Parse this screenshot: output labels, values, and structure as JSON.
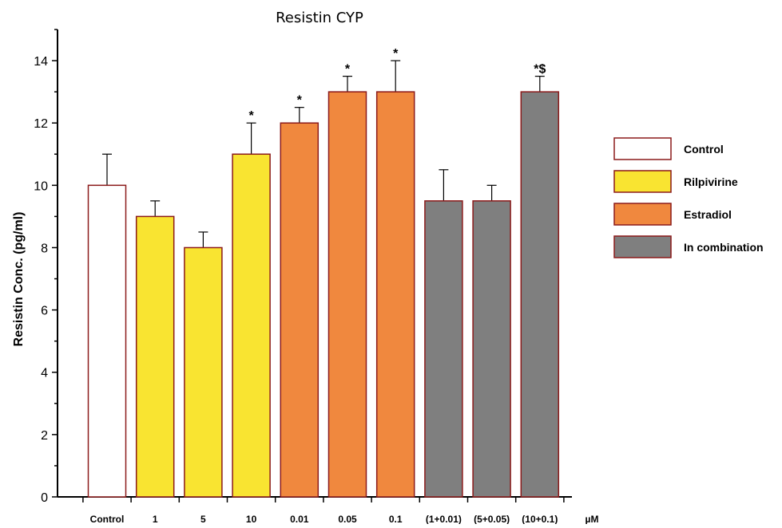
{
  "chart_data": {
    "type": "bar",
    "title": "Resistin CYP",
    "xlabel": "",
    "ylabel": "Resistin Conc.  (pg/ml)",
    "unit_label": "µM",
    "ylim": [
      0,
      15
    ],
    "yticks": [
      0,
      2,
      4,
      6,
      8,
      10,
      12,
      14
    ],
    "grid": false,
    "legend_position": "right",
    "categories": [
      "Control",
      "1",
      "5",
      "10",
      "0.01",
      "0.05",
      "0.1",
      "(1+0.01)",
      "(5+0.05)",
      "(10+0.1)"
    ],
    "values": [
      10,
      9,
      8,
      11,
      12,
      13,
      13,
      9.5,
      9.5,
      13
    ],
    "errors": [
      1,
      0.5,
      0.5,
      1,
      0.5,
      0.5,
      1,
      1,
      0.5,
      0.5
    ],
    "annotations": [
      "",
      "",
      "",
      "*",
      "*",
      "*",
      "*",
      "",
      "",
      "*$"
    ],
    "groups": [
      0,
      1,
      1,
      1,
      2,
      2,
      2,
      3,
      3,
      3
    ],
    "series": [
      {
        "name": "Control",
        "color": "#ffffff"
      },
      {
        "name": "Rilpivirine",
        "color": "#f9e431"
      },
      {
        "name": "Estradiol",
        "color": "#f0883e"
      },
      {
        "name": "In combination",
        "color": "#7f7f7f"
      }
    ],
    "bar_edge_color": "#8b1a1a"
  }
}
